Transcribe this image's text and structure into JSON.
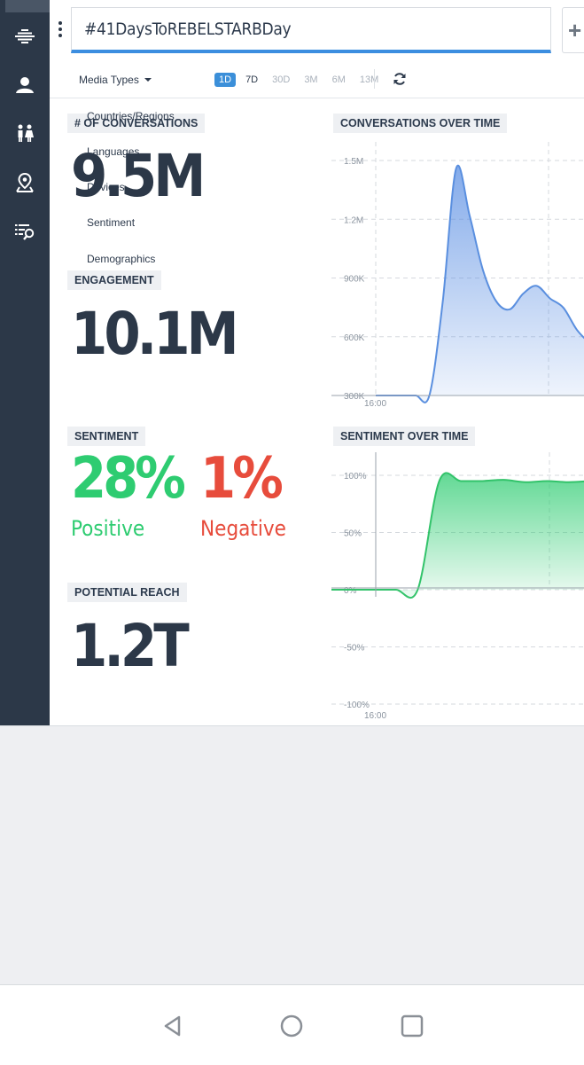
{
  "search": {
    "query": "#41DaysToREBELSTARBDay"
  },
  "toolbar": {
    "media_types_label": "Media Types",
    "ranges": [
      "1D",
      "7D",
      "30D",
      "3M",
      "6M",
      "13M"
    ],
    "active_range": "1D"
  },
  "media_menu": {
    "items": [
      "Countries/Regions",
      "Languages",
      "Devices",
      "Sentiment",
      "Demographics"
    ]
  },
  "sidebar": {
    "icons": [
      "logo-icon",
      "person-icon",
      "people-icon",
      "map-pin-icon",
      "search-list-icon"
    ]
  },
  "metrics": {
    "conversations": {
      "label": "# OF CONVERSATIONS",
      "value": "9.5M"
    },
    "engagement": {
      "label": "ENGAGEMENT",
      "value": "10.1M"
    },
    "sentiment": {
      "label": "SENTIMENT",
      "positive_value": "28%",
      "positive_label": "Positive",
      "negative_value": "1%",
      "negative_label": "Negative"
    },
    "reach": {
      "label": "POTENTIAL REACH",
      "value": "1.2T"
    }
  },
  "colors": {
    "accent": "#3b8fd9",
    "positive": "#2ecc71",
    "negative": "#e74c3c",
    "sidebar": "#2c3848"
  },
  "chart_data": [
    {
      "type": "area",
      "title": "CONVERSATIONS OVER TIME",
      "xlabel": "",
      "ylabel": "",
      "x_tick_labels": [
        "16:00"
      ],
      "y_tick_labels": [
        "1.5M",
        "1.2M",
        "900K",
        "600K",
        "300K"
      ],
      "ylim": [
        0,
        1500000
      ],
      "grid": true,
      "series": [
        {
          "values": [
            0,
            0,
            0,
            0,
            0,
            600000,
            1450000,
            1150000,
            800000,
            600000,
            550000,
            650000,
            700000,
            620000,
            560000,
            420000,
            330000
          ]
        }
      ]
    },
    {
      "type": "area",
      "title": "SENTIMENT OVER TIME",
      "xlabel": "",
      "ylabel": "",
      "x_tick_labels": [
        "16:00"
      ],
      "y_tick_labels": [
        "100%",
        "50%",
        "0%",
        "-50%",
        "-100%"
      ],
      "ylim": [
        -100,
        100
      ],
      "grid": true,
      "series": [
        {
          "values": [
            0,
            0,
            0,
            0,
            0,
            95,
            95,
            95,
            96,
            94,
            95,
            94,
            95
          ]
        }
      ]
    }
  ]
}
